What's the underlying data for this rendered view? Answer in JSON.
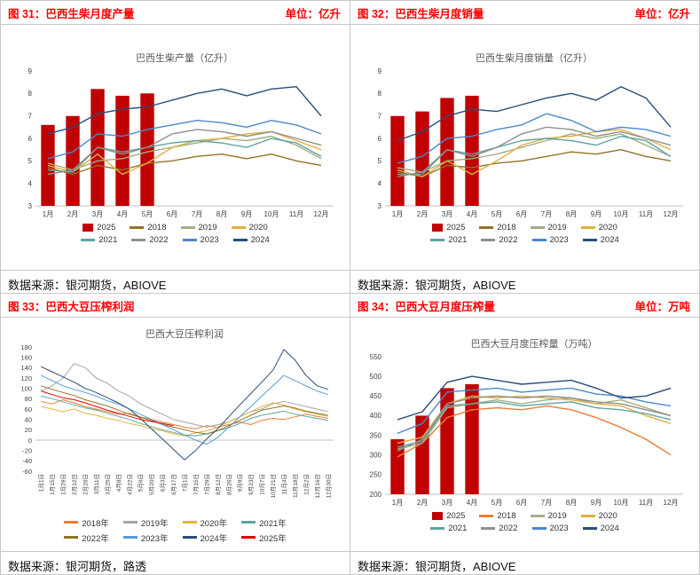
{
  "palette": {
    "header_red": "#ff0000",
    "bar_red": "#c00000",
    "axis_gray": "#bfbfbf"
  },
  "panels": [
    {
      "fig_label": "图 31：巴西生柴月度产量",
      "unit_label": "单位：亿升",
      "source": "数据来源：银河期货，ABIOVE"
    },
    {
      "fig_label": "图 32：巴西生柴月度销量",
      "unit_label": "单位：亿升",
      "source": "数据来源：银河期货，ABIOVE"
    },
    {
      "fig_label": "图 33：巴西大豆压榨利润",
      "unit_label": "",
      "source": "数据来源：银河期货，路透"
    },
    {
      "fig_label": "图 34：巴西大豆月度压榨量",
      "unit_label": "单位：万吨",
      "source": "数据来源：银河期货，ABIOVE"
    }
  ],
  "chart_data": [
    {
      "type": "bar+line",
      "title": "巴西生柴产量（亿升）",
      "categories": [
        "1月",
        "2月",
        "3月",
        "4月",
        "5月",
        "6月",
        "7月",
        "8月",
        "9月",
        "10月",
        "11月",
        "12月"
      ],
      "ylim": [
        3,
        9
      ],
      "ytick_step": 1,
      "grid": false,
      "legend_position": "bottom",
      "legend_per_row": 4,
      "line_width": 1.4,
      "bar_series": {
        "name": "2025",
        "color": "#c00000",
        "values": [
          6.6,
          7.0,
          8.2,
          7.9,
          8.0,
          null,
          null,
          null,
          null,
          null,
          null,
          null
        ]
      },
      "series": [
        {
          "name": "2018",
          "color": "#937424",
          "values": [
            4.7,
            4.4,
            4.8,
            4.6,
            4.9,
            5.0,
            5.2,
            5.3,
            5.1,
            5.3,
            5.0,
            4.8
          ]
        },
        {
          "name": "2019",
          "color": "#a4ae88",
          "values": [
            4.9,
            4.6,
            5.0,
            5.1,
            5.4,
            5.6,
            5.8,
            6.0,
            5.9,
            6.1,
            5.7,
            5.1
          ]
        },
        {
          "name": "2020",
          "color": "#e0b13f",
          "values": [
            4.8,
            4.5,
            5.3,
            4.4,
            4.9,
            5.6,
            5.9,
            6.0,
            6.2,
            6.3,
            5.9,
            5.5
          ]
        },
        {
          "name": "2021",
          "color": "#5fa4a0",
          "values": [
            4.6,
            4.5,
            5.6,
            5.4,
            5.6,
            5.8,
            5.9,
            5.8,
            5.6,
            6.0,
            5.8,
            5.2
          ]
        },
        {
          "name": "2022",
          "color": "#8f8f8f",
          "values": [
            4.4,
            4.6,
            5.6,
            5.3,
            5.6,
            6.2,
            6.4,
            6.3,
            6.1,
            6.3,
            6.0,
            5.7
          ]
        },
        {
          "name": "2023",
          "color": "#4e87c7",
          "values": [
            5.1,
            5.4,
            6.2,
            6.1,
            6.4,
            6.6,
            6.8,
            6.7,
            6.5,
            6.8,
            6.6,
            6.2
          ]
        },
        {
          "name": "2024",
          "color": "#2a4e76",
          "values": [
            6.2,
            6.5,
            7.1,
            7.3,
            7.4,
            7.7,
            8.0,
            8.2,
            7.9,
            8.2,
            8.3,
            7.0
          ]
        }
      ]
    },
    {
      "type": "bar+line",
      "title": "巴西生柴月度销量（亿升）",
      "categories": [
        "1月",
        "2月",
        "3月",
        "4月",
        "5月",
        "6月",
        "7月",
        "8月",
        "9月",
        "10月",
        "11月",
        "12月"
      ],
      "ylim": [
        3,
        9
      ],
      "ytick_step": 1,
      "grid": false,
      "legend_position": "bottom",
      "legend_per_row": 4,
      "line_width": 1.4,
      "bar_series": {
        "name": "2025",
        "color": "#c00000",
        "values": [
          7.0,
          7.2,
          7.8,
          7.9,
          null,
          null,
          null,
          null,
          null,
          null,
          null,
          null
        ]
      },
      "series": [
        {
          "name": "2018",
          "color": "#937424",
          "values": [
            4.5,
            4.3,
            4.8,
            4.7,
            4.9,
            5.0,
            5.2,
            5.4,
            5.3,
            5.5,
            5.2,
            5.0
          ]
        },
        {
          "name": "2019",
          "color": "#a4ae88",
          "values": [
            4.7,
            4.5,
            5.0,
            5.1,
            5.3,
            5.6,
            5.9,
            6.2,
            6.0,
            6.2,
            5.7,
            5.2
          ]
        },
        {
          "name": "2020",
          "color": "#e0b13f",
          "values": [
            4.6,
            4.3,
            5.0,
            4.4,
            5.0,
            5.7,
            6.0,
            6.1,
            6.3,
            6.4,
            6.0,
            5.5
          ]
        },
        {
          "name": "2021",
          "color": "#5fa4a0",
          "values": [
            4.4,
            4.4,
            5.5,
            5.3,
            5.6,
            5.9,
            6.0,
            5.9,
            5.7,
            6.1,
            5.9,
            5.2
          ]
        },
        {
          "name": "2022",
          "color": "#8f8f8f",
          "values": [
            4.3,
            4.5,
            5.5,
            5.2,
            5.6,
            6.2,
            6.5,
            6.4,
            6.1,
            6.3,
            6.0,
            5.7
          ]
        },
        {
          "name": "2023",
          "color": "#4e87c7",
          "values": [
            4.9,
            5.2,
            6.0,
            6.1,
            6.4,
            6.6,
            7.1,
            6.8,
            6.3,
            6.5,
            6.4,
            6.1
          ]
        },
        {
          "name": "2024",
          "color": "#2a4e76",
          "values": [
            5.9,
            6.3,
            7.0,
            7.3,
            7.2,
            7.5,
            7.8,
            8.0,
            7.7,
            8.3,
            7.8,
            6.5
          ]
        }
      ]
    },
    {
      "type": "line",
      "title": "巴西大豆压榨利润",
      "categories": [
        "1月1日",
        "1月15日",
        "1月29日",
        "2月12日",
        "2月26日",
        "3月11日",
        "3月25日",
        "4月8日",
        "4月22日",
        "5月6日",
        "5月20日",
        "6月3日",
        "6月17日",
        "7月1日",
        "7月15日",
        "7月29日",
        "8月12日",
        "8月26日",
        "9月9日",
        "9月23日",
        "10月7日",
        "10月21日",
        "11月4日",
        "11月18日",
        "12月2日",
        "12月16日",
        "12月30日"
      ],
      "ylim": [
        -60,
        180
      ],
      "ytick_step": 20,
      "grid": false,
      "legend_position": "bottom",
      "legend_per_row": 4,
      "line_width": 1,
      "x_label_rotate": true,
      "axis_at_zero": true,
      "series": [
        {
          "name": "2018年",
          "color": "#ed7d31",
          "values": [
            75,
            70,
            78,
            72,
            65,
            60,
            55,
            50,
            52,
            45,
            40,
            35,
            30,
            25,
            22,
            28,
            25,
            30,
            35,
            30,
            38,
            42,
            40,
            45,
            50,
            46,
            42
          ]
        },
        {
          "name": "2019年",
          "color": "#a5a5a5",
          "values": [
            95,
            105,
            120,
            148,
            140,
            120,
            110,
            95,
            85,
            70,
            60,
            50,
            40,
            35,
            30,
            25,
            30,
            35,
            45,
            55,
            60,
            70,
            75,
            70,
            65,
            60,
            55
          ]
        },
        {
          "name": "2020年",
          "color": "#e8b33c",
          "values": [
            65,
            60,
            55,
            60,
            52,
            48,
            42,
            38,
            32,
            28,
            22,
            18,
            12,
            8,
            14,
            18,
            25,
            35,
            45,
            55,
            65,
            72,
            68,
            60,
            55,
            50,
            46
          ]
        },
        {
          "name": "2021年",
          "color": "#5fa4a0",
          "values": [
            85,
            80,
            74,
            68,
            62,
            58,
            52,
            46,
            40,
            32,
            26,
            20,
            15,
            10,
            8,
            12,
            18,
            24,
            32,
            42,
            48,
            52,
            56,
            50,
            46,
            42,
            38
          ]
        },
        {
          "name": "2022年",
          "color": "#937424",
          "values": [
            105,
            98,
            92,
            86,
            78,
            72,
            66,
            58,
            50,
            44,
            38,
            30,
            25,
            20,
            15,
            12,
            18,
            28,
            38,
            48,
            58,
            62,
            66,
            62,
            56,
            52,
            48
          ]
        },
        {
          "name": "2023年",
          "color": "#5b9bd5",
          "values": [
            125,
            115,
            105,
            98,
            92,
            85,
            76,
            70,
            60,
            50,
            40,
            30,
            20,
            10,
            0,
            -8,
            5,
            25,
            45,
            65,
            85,
            105,
            125,
            115,
            105,
            95,
            88
          ]
        },
        {
          "name": "2024年",
          "color": "#2a4e76",
          "values": [
            142,
            132,
            122,
            112,
            100,
            92,
            82,
            72,
            60,
            42,
            22,
            2,
            -18,
            -38,
            -20,
            2,
            22,
            45,
            68,
            90,
            112,
            135,
            175,
            155,
            125,
            105,
            98
          ]
        },
        {
          "name": "2025年",
          "color": "#e00000",
          "values": [
            95,
            88,
            82,
            78,
            72,
            65,
            58,
            52,
            46,
            40,
            36,
            32,
            28,
            null,
            null,
            null,
            null,
            null,
            null,
            null,
            null,
            null,
            null,
            null,
            null,
            null,
            null
          ]
        }
      ]
    },
    {
      "type": "bar+line",
      "title": "巴西大豆月度压榨量（万吨）",
      "categories": [
        "1月",
        "2月",
        "3月",
        "4月",
        "5月",
        "6月",
        "7月",
        "8月",
        "9月",
        "10月",
        "11月",
        "12月"
      ],
      "ylim": [
        200,
        550
      ],
      "ytick_step": 50,
      "grid": false,
      "legend_position": "bottom",
      "legend_per_row": 4,
      "line_width": 1.4,
      "bar_series": {
        "name": "2025",
        "color": "#c00000",
        "values": [
          340,
          400,
          470,
          480,
          null,
          null,
          null,
          null,
          null,
          null,
          null,
          null
        ]
      },
      "series": [
        {
          "name": "2018",
          "color": "#ed7d31",
          "values": [
            295,
            330,
            395,
            415,
            420,
            415,
            425,
            415,
            395,
            370,
            340,
            300
          ]
        },
        {
          "name": "2019",
          "color": "#a4ae88",
          "values": [
            315,
            330,
            420,
            430,
            440,
            430,
            440,
            445,
            430,
            440,
            420,
            400
          ]
        },
        {
          "name": "2020",
          "color": "#e0b13f",
          "values": [
            330,
            345,
            430,
            450,
            445,
            450,
            445,
            440,
            430,
            425,
            400,
            380
          ]
        },
        {
          "name": "2021",
          "color": "#5fa4a0",
          "values": [
            320,
            335,
            425,
            430,
            435,
            425,
            430,
            435,
            420,
            415,
            405,
            390
          ]
        },
        {
          "name": "2022",
          "color": "#8f8f8f",
          "values": [
            310,
            340,
            430,
            445,
            450,
            445,
            450,
            445,
            435,
            430,
            415,
            400
          ]
        },
        {
          "name": "2023",
          "color": "#4e87c7",
          "values": [
            355,
            380,
            460,
            465,
            470,
            460,
            465,
            470,
            455,
            450,
            435,
            425
          ]
        },
        {
          "name": "2024",
          "color": "#2a4e76",
          "values": [
            390,
            410,
            485,
            500,
            490,
            480,
            485,
            490,
            470,
            445,
            450,
            470
          ]
        }
      ]
    }
  ]
}
